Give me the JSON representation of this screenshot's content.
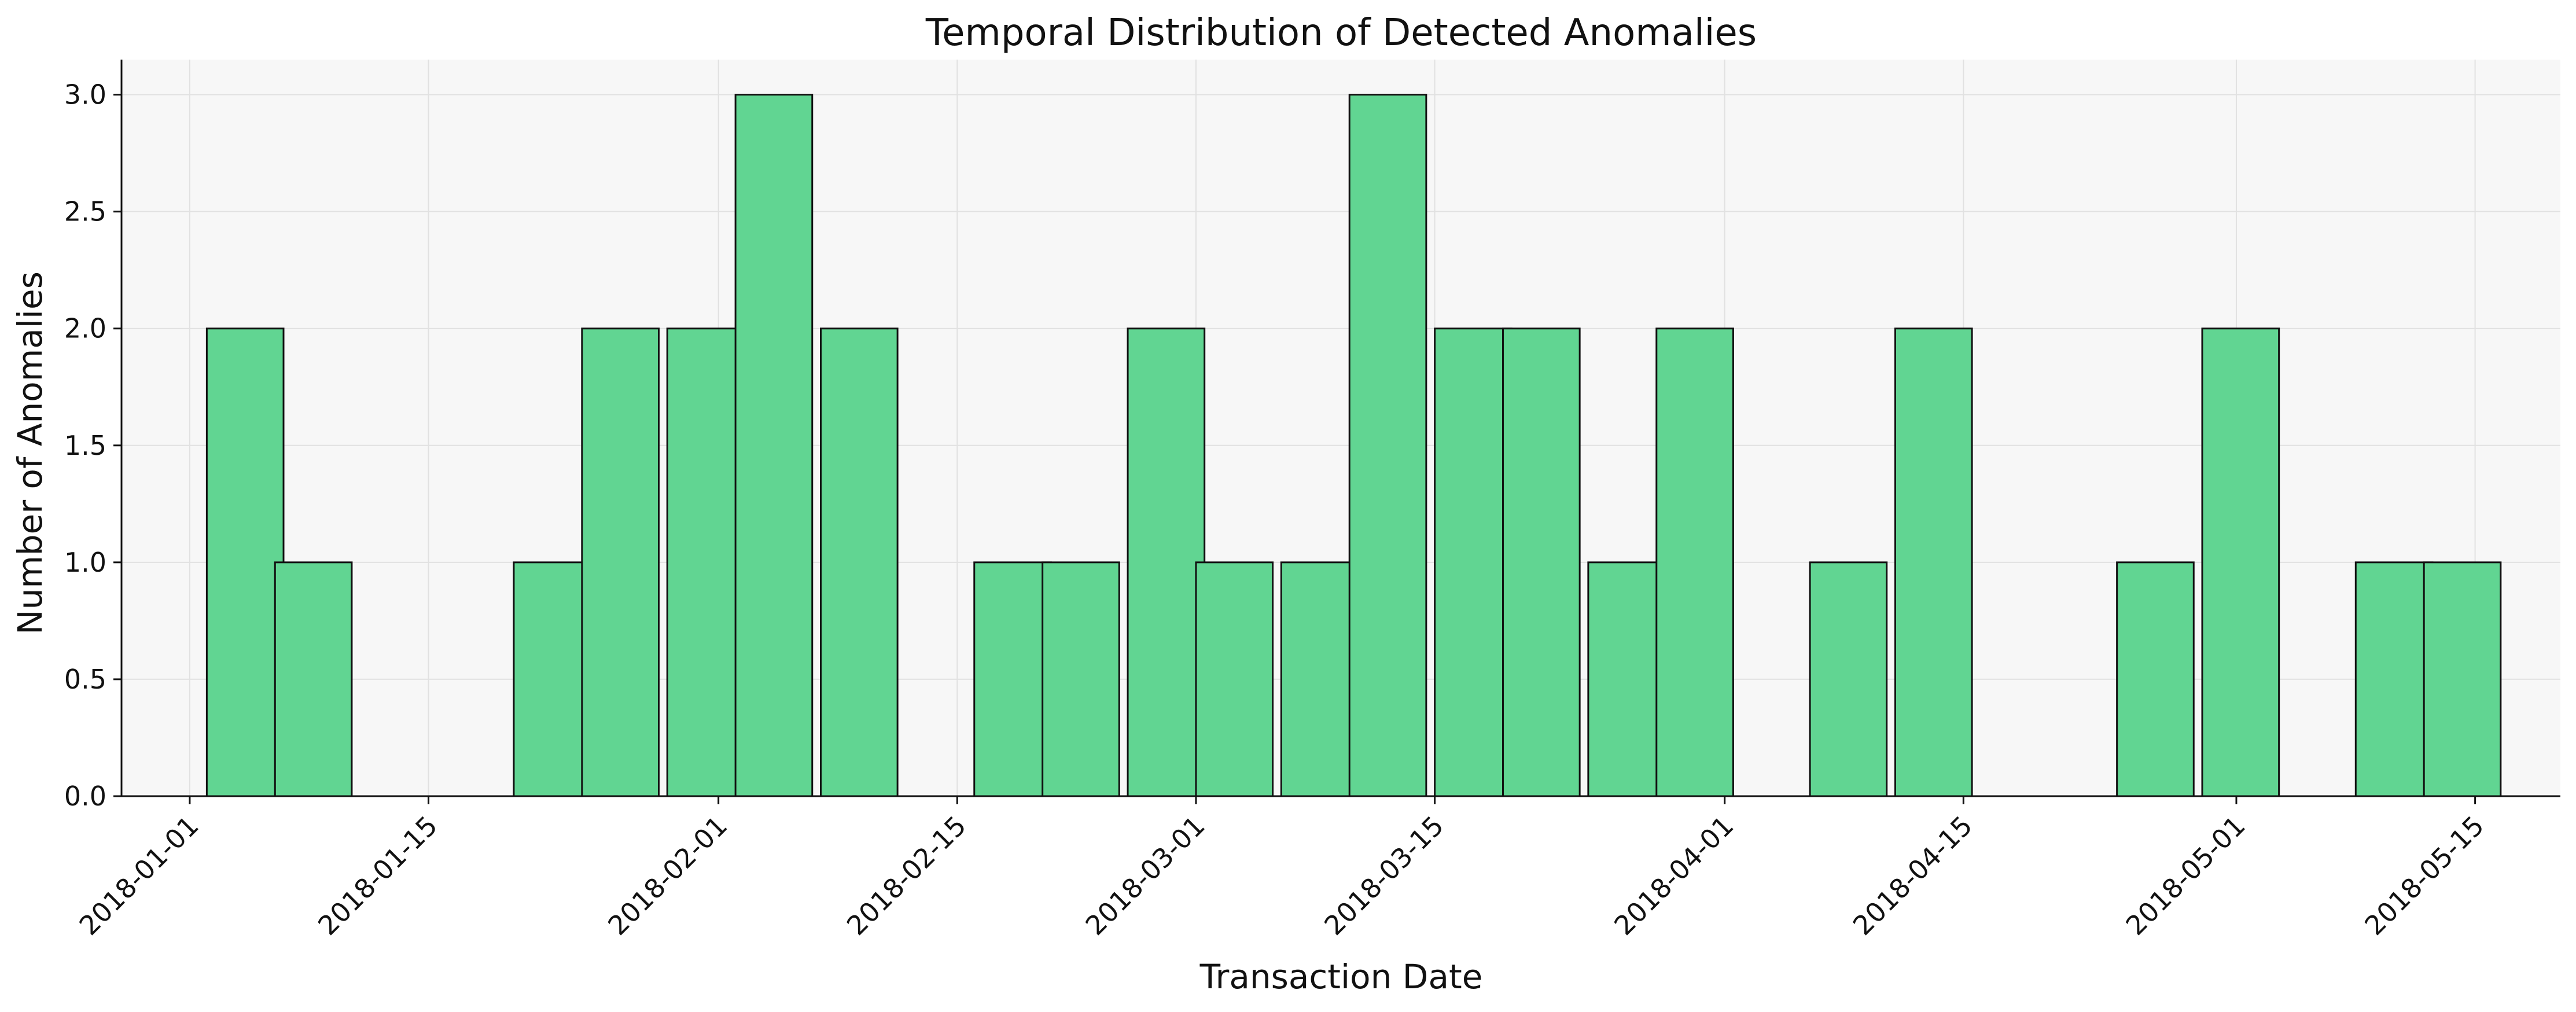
{
  "chart_data": {
    "type": "bar",
    "subtype": "histogram",
    "title": "Temporal Distribution of Detected Anomalies",
    "xlabel": "Transaction Date",
    "ylabel": "Number of Anomalies",
    "x_start": "2017-12-28",
    "x_end": "2018-05-20",
    "bin_width_days": 4.5,
    "bins": [
      {
        "start": "2018-01-02",
        "value": 2
      },
      {
        "start": "2018-01-06",
        "value": 1
      },
      {
        "start": "2018-01-11",
        "value": 0
      },
      {
        "start": "2018-01-15",
        "value": 0
      },
      {
        "start": "2018-01-20",
        "value": 1
      },
      {
        "start": "2018-01-24",
        "value": 2
      },
      {
        "start": "2018-01-29",
        "value": 2
      },
      {
        "start": "2018-02-02",
        "value": 3
      },
      {
        "start": "2018-02-07",
        "value": 2
      },
      {
        "start": "2018-02-11",
        "value": 0
      },
      {
        "start": "2018-02-16",
        "value": 1
      },
      {
        "start": "2018-02-20",
        "value": 1
      },
      {
        "start": "2018-02-25",
        "value": 2
      },
      {
        "start": "2018-03-01",
        "value": 1
      },
      {
        "start": "2018-03-06",
        "value": 1
      },
      {
        "start": "2018-03-10",
        "value": 3
      },
      {
        "start": "2018-03-15",
        "value": 2
      },
      {
        "start": "2018-03-19",
        "value": 2
      },
      {
        "start": "2018-03-24",
        "value": 1
      },
      {
        "start": "2018-03-28",
        "value": 2
      },
      {
        "start": "2018-04-02",
        "value": 0
      },
      {
        "start": "2018-04-06",
        "value": 1
      },
      {
        "start": "2018-04-11",
        "value": 2
      },
      {
        "start": "2018-04-15",
        "value": 0
      },
      {
        "start": "2018-04-20",
        "value": 0
      },
      {
        "start": "2018-04-24",
        "value": 1
      },
      {
        "start": "2018-04-29",
        "value": 2
      },
      {
        "start": "2018-05-03",
        "value": 0
      },
      {
        "start": "2018-05-08",
        "value": 1
      },
      {
        "start": "2018-05-12",
        "value": 1
      }
    ],
    "x_ticks": [
      "2018-01-01",
      "2018-01-15",
      "2018-02-01",
      "2018-02-15",
      "2018-03-01",
      "2018-03-15",
      "2018-04-01",
      "2018-04-15",
      "2018-05-01",
      "2018-05-15"
    ],
    "y_ticks": [
      "0.0",
      "0.5",
      "1.0",
      "1.5",
      "2.0",
      "2.5",
      "3.0"
    ],
    "ylim": [
      0,
      3.15
    ],
    "grid": true,
    "legend": "none",
    "colors": {
      "bar_fill": "#61d592",
      "bar_edge": "#111111",
      "plot_background": "#f7f7f7",
      "grid": "#e1e1e1",
      "axis": "#111111"
    }
  }
}
